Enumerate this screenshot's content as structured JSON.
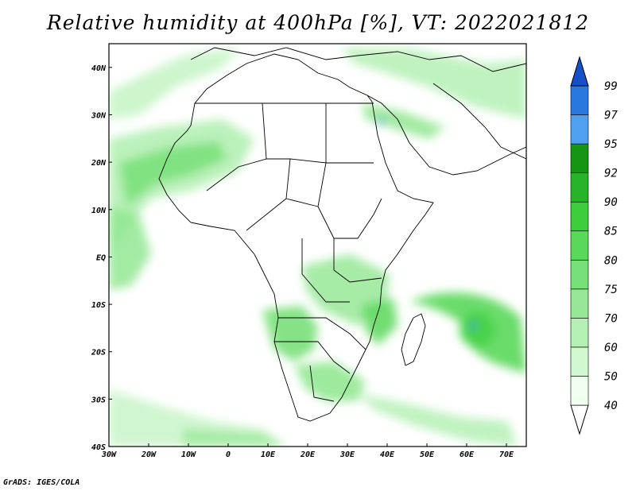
{
  "title": "Relative humidity at 400hPa [%], VT: 2022021812",
  "credit": "GrADS: IGES/COLA",
  "map": {
    "lon_range": [
      -30,
      75
    ],
    "lat_range": [
      -40,
      45
    ],
    "lon_ticks": [
      {
        "value": -30,
        "label": "30W"
      },
      {
        "value": -20,
        "label": "20W"
      },
      {
        "value": -10,
        "label": "10W"
      },
      {
        "value": 0,
        "label": "0"
      },
      {
        "value": 10,
        "label": "10E"
      },
      {
        "value": 20,
        "label": "20E"
      },
      {
        "value": 30,
        "label": "30E"
      },
      {
        "value": 40,
        "label": "40E"
      },
      {
        "value": 50,
        "label": "50E"
      },
      {
        "value": 60,
        "label": "60E"
      },
      {
        "value": 70,
        "label": "70E"
      }
    ],
    "lat_ticks": [
      {
        "value": 40,
        "label": "40N"
      },
      {
        "value": 30,
        "label": "30N"
      },
      {
        "value": 20,
        "label": "20N"
      },
      {
        "value": 10,
        "label": "10N"
      },
      {
        "value": 0,
        "label": "EQ"
      },
      {
        "value": -10,
        "label": "10S"
      },
      {
        "value": -20,
        "label": "20S"
      },
      {
        "value": -30,
        "label": "30S"
      },
      {
        "value": -40,
        "label": "40S"
      }
    ]
  },
  "colorbar": {
    "levels": [
      "40",
      "50",
      "60",
      "70",
      "75",
      "80",
      "85",
      "90",
      "92",
      "95",
      "97",
      "99"
    ],
    "colors": [
      "#f0fff0",
      "#d2f8d2",
      "#b4f0b4",
      "#96e896",
      "#78e078",
      "#5ad85a",
      "#3ccc3c",
      "#28b428",
      "#149614",
      "#50a0f0",
      "#2878e0",
      "#1450c8"
    ]
  },
  "humidity_colors": {
    "light": "#c8f5c8",
    "medium": "#8ce68c",
    "strong": "#46d246",
    "peak_blue": "#3c8cdc"
  }
}
